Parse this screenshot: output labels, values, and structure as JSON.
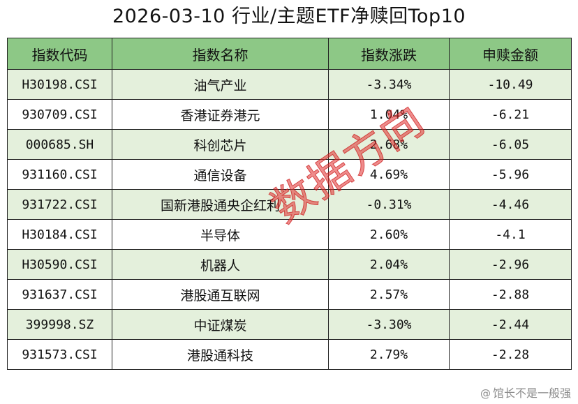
{
  "title": "2026-03-10 行业/主题ETF净赎回Top10",
  "table": {
    "headers": [
      "指数代码",
      "指数名称",
      "指数涨跌",
      "申赎金额"
    ],
    "rows": [
      {
        "code": "H30198.CSI",
        "name": "油气产业",
        "change": "-3.34%",
        "amount": "-10.49"
      },
      {
        "code": "930709.CSI",
        "name": "香港证券港元",
        "change": "1.04%",
        "amount": "-6.21"
      },
      {
        "code": "000685.SH",
        "name": "科创芯片",
        "change": "2.68%",
        "amount": "-6.05"
      },
      {
        "code": "931160.CSI",
        "name": "通信设备",
        "change": "4.69%",
        "amount": "-5.96"
      },
      {
        "code": "931722.CSI",
        "name": "国新港股通央企红利",
        "change": "-0.31%",
        "amount": "-4.46"
      },
      {
        "code": "H30184.CSI",
        "name": "半导体",
        "change": "2.60%",
        "amount": "-4.1"
      },
      {
        "code": "H30590.CSI",
        "name": "机器人",
        "change": "2.04%",
        "amount": "-2.96"
      },
      {
        "code": "931637.CSI",
        "name": "港股通互联网",
        "change": "2.57%",
        "amount": "-2.88"
      },
      {
        "code": "399998.SZ",
        "name": "中证煤炭",
        "change": "-3.30%",
        "amount": "-2.44"
      },
      {
        "code": "931573.CSI",
        "name": "港股通科技",
        "change": "2.79%",
        "amount": "-2.28"
      }
    ]
  },
  "watermark": "数据方向",
  "credit": {
    "at": "@",
    "name": "馆长不是一般强"
  },
  "colors": {
    "header_bg": "#8dc886",
    "row_odd_bg": "#e4f0dc",
    "row_even_bg": "#ffffff",
    "border": "#222222",
    "watermark": "#e12d2d",
    "credit": "#8c8c8c"
  }
}
